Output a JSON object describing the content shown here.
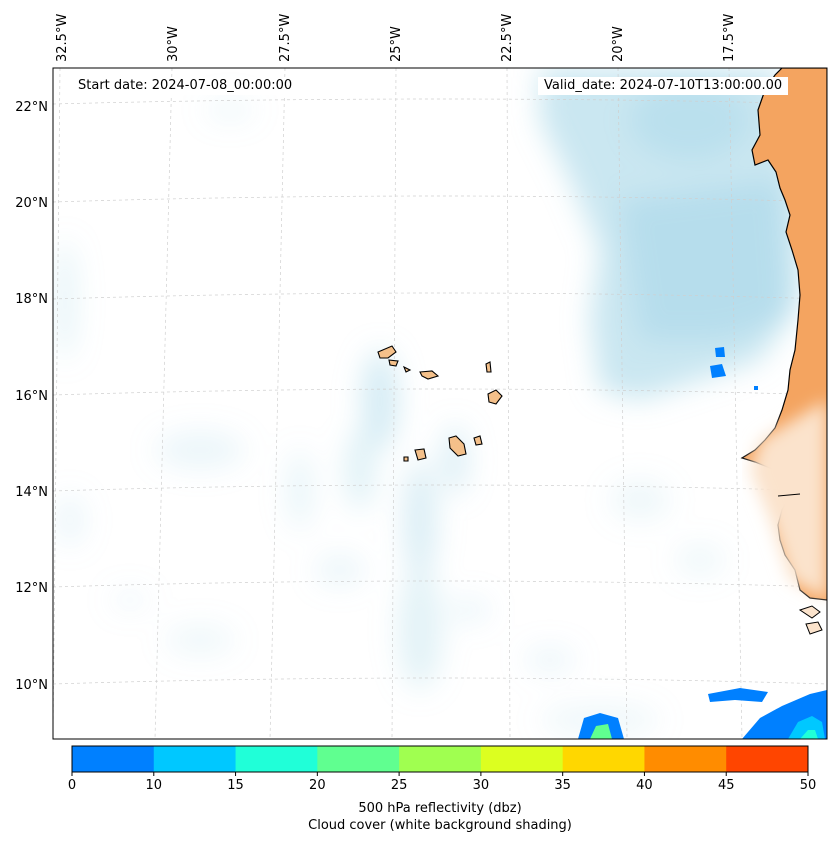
{
  "info": {
    "start_label": "Start date: 2024-07-08_00:00:00",
    "valid_label": "Valid_date: 2024-07-10T13:00:00.00"
  },
  "axes": {
    "lon_labels": [
      "32.5°W",
      "30°W",
      "27.5°W",
      "25°W",
      "22.5°W",
      "20°W",
      "17.5°W"
    ],
    "lat_labels": [
      "22°N",
      "20°N",
      "18°N",
      "16°N",
      "14°N",
      "12°N",
      "10°N"
    ]
  },
  "colorbar": {
    "ticks": [
      "0",
      "10",
      "15",
      "20",
      "25",
      "30",
      "35",
      "40",
      "45",
      "50"
    ],
    "colors": [
      "#0080ff",
      "#00c8ff",
      "#20ffd8",
      "#60ff90",
      "#a0ff50",
      "#dcff20",
      "#ffd700",
      "#ff8c00",
      "#ff4500"
    ],
    "label": "500 hPa reflectivity (dbz)",
    "sublabel": "Cloud cover (white background shading)"
  },
  "colors": {
    "land": "#f4a460",
    "land_light": "#fbe3cc",
    "cloud": "#9fd3e6",
    "coast": "#000000"
  }
}
